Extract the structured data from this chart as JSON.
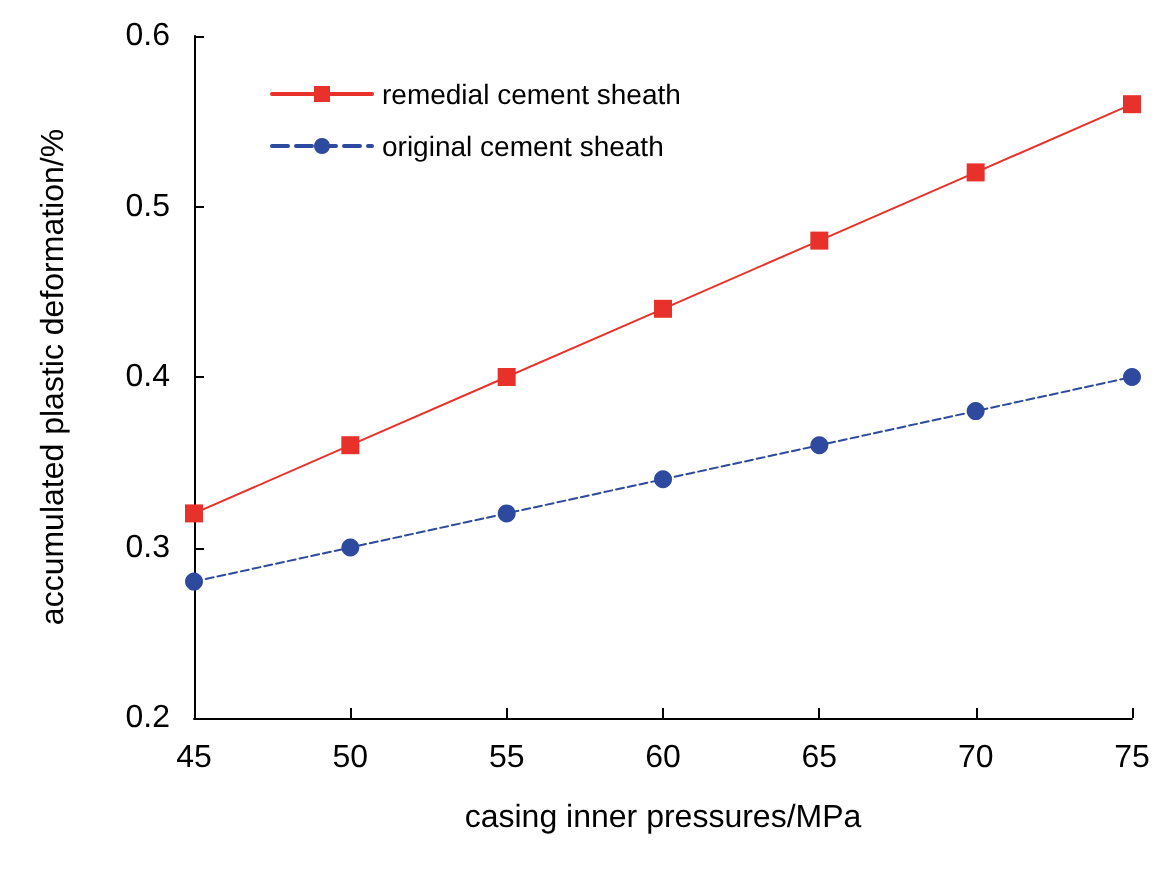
{
  "chart_data": {
    "type": "line",
    "xlabel": "casing inner pressures/MPa",
    "ylabel": "accumulated plastic deformation/%",
    "x": [
      45,
      50,
      55,
      60,
      65,
      70,
      75
    ],
    "series": [
      {
        "name": "remedial cement sheath",
        "color": "#e8312a",
        "marker": "square",
        "line_style": "solid",
        "values": [
          0.32,
          0.36,
          0.4,
          0.44,
          0.48,
          0.52,
          0.56
        ]
      },
      {
        "name": "original cement sheath",
        "color": "#2e4a9e",
        "marker": "circle",
        "line_style": "dashed",
        "values": [
          0.28,
          0.3,
          0.32,
          0.34,
          0.36,
          0.38,
          0.4
        ]
      }
    ],
    "xlim": [
      45,
      75
    ],
    "xticks": [
      45,
      50,
      55,
      60,
      65,
      70,
      75
    ],
    "ylim": [
      0.2,
      0.6
    ],
    "yticks": [
      0.2,
      0.3,
      0.4,
      0.5,
      0.6
    ],
    "grid": false,
    "legend": "top left"
  }
}
